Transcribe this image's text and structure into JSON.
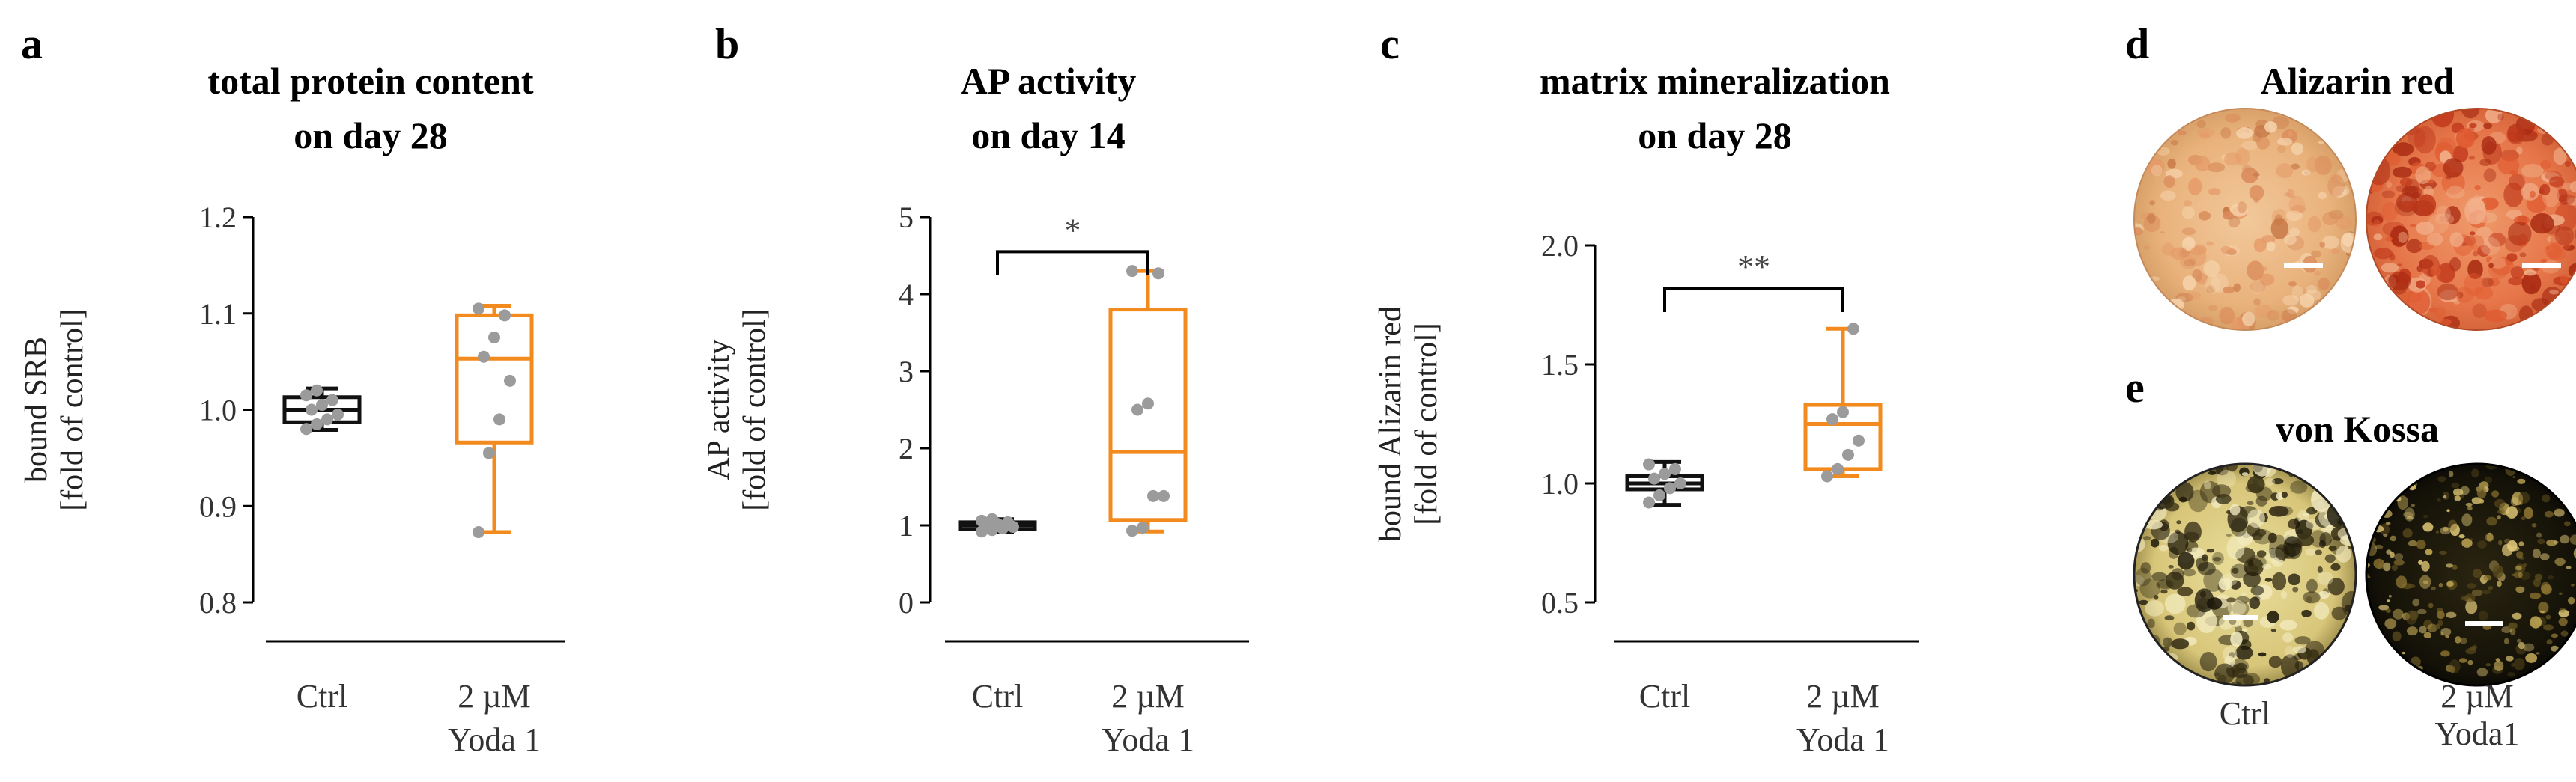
{
  "colors": {
    "ctrl": "#111111",
    "yoda": "#f28a1e",
    "points": "#9b9b9b"
  },
  "panels": {
    "a": {
      "letter": "a"
    },
    "b": {
      "letter": "b"
    },
    "c": {
      "letter": "c"
    },
    "d": {
      "letter": "d",
      "title": "Alizarin red"
    },
    "e": {
      "letter": "e",
      "title": "von Kossa",
      "ctrl_label": "Ctrl",
      "yoda_label_1": "2 µM",
      "yoda_label_2": "Yoda1"
    }
  },
  "chart_data": [
    {
      "type": "box",
      "panel": "a",
      "title": [
        "total protein content",
        "on day 28"
      ],
      "ylabel": [
        "bound SRB",
        "[fold of control]"
      ],
      "ylim": [
        0.8,
        1.2
      ],
      "yticks": [
        0.8,
        0.9,
        1.0,
        1.1,
        1.2
      ],
      "ytick_labels": [
        "0.8",
        "0.9",
        "1.0",
        "1.1",
        "1.2"
      ],
      "categories": [
        "Ctrl",
        "2 µM Yoda 1"
      ],
      "category_lines": [
        [
          "Ctrl"
        ],
        [
          "2 µM",
          "Yoda 1"
        ]
      ],
      "boxes": [
        {
          "name": "Ctrl",
          "min": 0.979,
          "q1": 0.987,
          "median": 1.0,
          "q3": 1.013,
          "max": 1.022,
          "points": [
            0.98,
            0.985,
            0.99,
            0.995,
            1.0,
            1.005,
            1.01,
            1.015,
            1.02
          ]
        },
        {
          "name": "2 µM Yoda 1",
          "min": 0.873,
          "q1": 0.966,
          "median": 1.053,
          "q3": 1.098,
          "max": 1.108,
          "points": [
            0.873,
            0.955,
            0.99,
            1.03,
            1.055,
            1.075,
            1.098,
            1.105
          ]
        }
      ],
      "significance": null
    },
    {
      "type": "box",
      "panel": "b",
      "title": [
        "AP activity",
        "on day 14"
      ],
      "ylabel": [
        "AP activity",
        "[fold of control]"
      ],
      "ylim": [
        0,
        5
      ],
      "yticks": [
        0,
        1,
        2,
        3,
        4,
        5
      ],
      "ytick_labels": [
        "0",
        "1",
        "2",
        "3",
        "4",
        "5"
      ],
      "categories": [
        "Ctrl",
        "2 µM Yoda 1"
      ],
      "category_lines": [
        [
          "Ctrl"
        ],
        [
          "2 µM",
          "Yoda 1"
        ]
      ],
      "boxes": [
        {
          "name": "Ctrl",
          "min": 0.91,
          "q1": 0.95,
          "median": 1.0,
          "q3": 1.04,
          "max": 1.08,
          "points": [
            0.92,
            0.94,
            0.96,
            0.98,
            1.0,
            1.02,
            1.04,
            1.06,
            1.08
          ]
        },
        {
          "name": "2 µM Yoda 1",
          "min": 0.92,
          "q1": 1.07,
          "median": 1.95,
          "q3": 3.8,
          "max": 4.3,
          "points": [
            0.93,
            0.97,
            1.38,
            1.38,
            2.5,
            2.58,
            4.27,
            4.3
          ]
        }
      ],
      "significance": "*"
    },
    {
      "type": "box",
      "panel": "c",
      "title": [
        "matrix mineralization",
        "on day 28"
      ],
      "ylabel": [
        "bound Alizarin red",
        "[fold of control]"
      ],
      "ylim": [
        0.5,
        2.0
      ],
      "yticks": [
        0.5,
        1.0,
        1.5,
        2.0
      ],
      "ytick_labels": [
        "0.5",
        "1.0",
        "1.5",
        "2.0"
      ],
      "categories": [
        "Ctrl",
        "2 µM Yoda 1"
      ],
      "category_lines": [
        [
          "Ctrl"
        ],
        [
          "2 µM",
          "Yoda 1"
        ]
      ],
      "boxes": [
        {
          "name": "Ctrl",
          "min": 0.91,
          "q1": 0.975,
          "median": 1.0,
          "q3": 1.03,
          "max": 1.09,
          "points": [
            0.92,
            0.95,
            0.98,
            1.0,
            1.02,
            1.04,
            1.06,
            1.08
          ]
        },
        {
          "name": "2 µM Yoda 1",
          "min": 1.03,
          "q1": 1.06,
          "median": 1.25,
          "q3": 1.33,
          "max": 1.65,
          "points": [
            1.03,
            1.06,
            1.12,
            1.18,
            1.27,
            1.3,
            1.65
          ]
        }
      ],
      "significance": "**"
    }
  ]
}
